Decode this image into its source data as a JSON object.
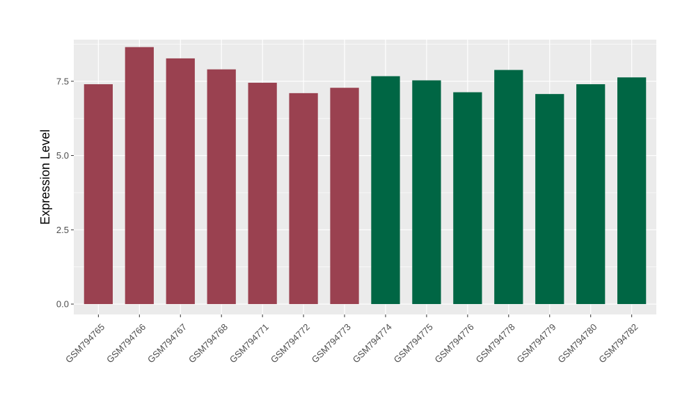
{
  "chart_data": {
    "type": "bar",
    "title": "",
    "xlabel": "",
    "ylabel": "Expression Level",
    "ylim": [
      -0.35,
      8.9
    ],
    "yticks": [
      0.0,
      2.5,
      5.0,
      7.5
    ],
    "ytick_labels": [
      "0.0",
      "2.5",
      "5.0",
      "7.5"
    ],
    "grid": true,
    "legend": "none",
    "categories": [
      "GSM794765",
      "GSM794766",
      "GSM794767",
      "GSM794768",
      "GSM794771",
      "GSM794772",
      "GSM794773",
      "GSM794774",
      "GSM794775",
      "GSM794776",
      "GSM794778",
      "GSM794779",
      "GSM794780",
      "GSM794782"
    ],
    "values": [
      7.4,
      8.65,
      8.27,
      7.9,
      7.45,
      7.1,
      7.28,
      7.67,
      7.53,
      7.13,
      7.88,
      7.07,
      7.4,
      7.63
    ],
    "bar_colors": [
      "#9a4150",
      "#9a4150",
      "#9a4150",
      "#9a4150",
      "#9a4150",
      "#9a4150",
      "#9a4150",
      "#006644",
      "#006644",
      "#006644",
      "#006644",
      "#006644",
      "#006644",
      "#006644"
    ],
    "panel_background": "#ebebeb",
    "grid_color": "#ffffff"
  }
}
